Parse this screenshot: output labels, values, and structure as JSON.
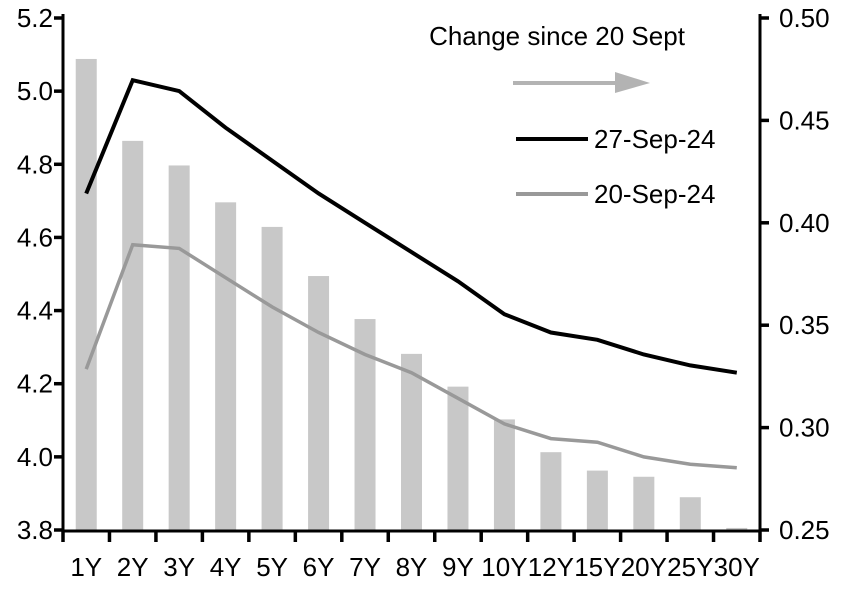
{
  "chart_data": {
    "type": "combo",
    "title": "",
    "categories": [
      "1Y",
      "2Y",
      "3Y",
      "4Y",
      "5Y",
      "6Y",
      "7Y",
      "8Y",
      "9Y",
      "10Y",
      "12Y",
      "15Y",
      "20Y",
      "25Y",
      "30Y"
    ],
    "series": [
      {
        "name": "Change since 20 Sept",
        "type": "bar",
        "axis": "right",
        "color": "#c8c8c8",
        "values": [
          0.48,
          0.44,
          0.428,
          0.41,
          0.398,
          0.374,
          0.353,
          0.336,
          0.32,
          0.304,
          0.288,
          0.279,
          0.276,
          0.266,
          0.251
        ]
      },
      {
        "name": "27-Sep-24",
        "type": "line",
        "axis": "left",
        "color": "#000000",
        "values": [
          4.72,
          5.03,
          5.0,
          4.9,
          4.81,
          4.72,
          4.64,
          4.56,
          4.48,
          4.39,
          4.34,
          4.32,
          4.28,
          4.25,
          4.23
        ]
      },
      {
        "name": "20-Sep-24",
        "type": "line",
        "axis": "left",
        "color": "#999999",
        "values": [
          4.24,
          4.58,
          4.57,
          4.49,
          4.41,
          4.34,
          4.28,
          4.23,
          4.16,
          4.09,
          4.05,
          4.04,
          4.0,
          3.98,
          3.97
        ]
      }
    ],
    "left_axis": {
      "min": 3.8,
      "max": 5.2,
      "step": 0.2,
      "tick_labels": [
        "5.2",
        "5.0",
        "4.8",
        "4.6",
        "4.4",
        "4.2",
        "4.0",
        "3.8"
      ]
    },
    "right_axis": {
      "min": 0.25,
      "max": 0.5,
      "step": 0.05,
      "tick_labels": [
        "0.50",
        "0.45",
        "0.40",
        "0.35",
        "0.30",
        "0.25"
      ]
    },
    "legend": {
      "position": "top-right-inside",
      "title": "Change since 20 Sept",
      "arrow_icon_color": "#b3b3b3",
      "items": [
        {
          "label": "27-Sep-24",
          "color": "#000000"
        },
        {
          "label": "20-Sep-24",
          "color": "#999999"
        }
      ]
    },
    "grid": false,
    "bar_baseline_right_value": 0.25,
    "colors": {
      "axis": "#000000",
      "bars": "#c8c8c8",
      "line_dark": "#000000",
      "line_gray": "#999999",
      "legend_arrow": "#b3b3b3",
      "background": "#ffffff"
    }
  }
}
